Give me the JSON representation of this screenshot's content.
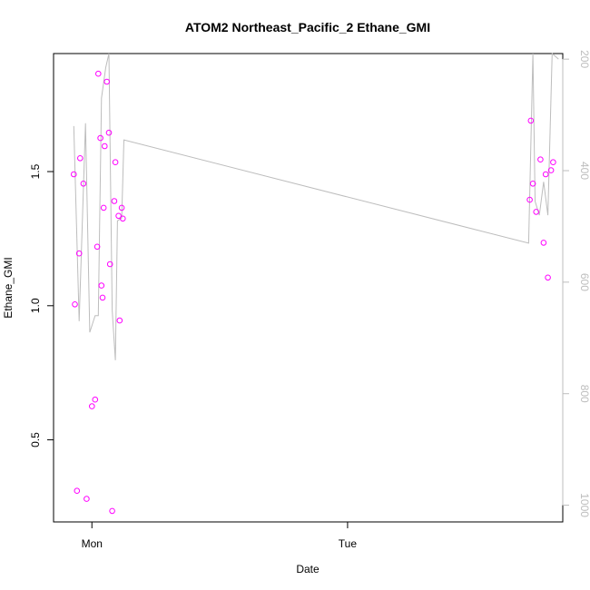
{
  "chart_data": {
    "type": "scatter",
    "title": "ATOM2 Northeast_Pacific_2 Ethane_GMI",
    "xlabel": "Date",
    "ylabel": "Ethane_GMI",
    "x_unit": "hours since Sunday 00:00",
    "xlim": [
      20.4,
      68.2
    ],
    "ylim": [
      0.194,
      1.94
    ],
    "x_ticks": [
      {
        "value": 24,
        "label": "Mon"
      },
      {
        "value": 48,
        "label": "Tue"
      }
    ],
    "y_ticks": [
      {
        "value": 0.5,
        "label": "0.5"
      },
      {
        "value": 1.0,
        "label": "1.0"
      },
      {
        "value": 1.5,
        "label": "1.5"
      }
    ],
    "y2_label": "",
    "y2lim": [
      1030,
      190
    ],
    "y2_ticks": [
      {
        "value": 200,
        "label": "200"
      },
      {
        "value": 400,
        "label": "400"
      },
      {
        "value": 600,
        "label": "600"
      },
      {
        "value": 800,
        "label": "800"
      },
      {
        "value": 1000,
        "label": "1000"
      }
    ],
    "grid": false,
    "series": [
      {
        "kind": "points",
        "color": "#ff00ff",
        "points": [
          [
            22.3,
            1.49
          ],
          [
            22.4,
            1.005
          ],
          [
            22.6,
            0.31
          ],
          [
            22.8,
            1.195
          ],
          [
            22.9,
            1.55
          ],
          [
            23.2,
            1.455
          ],
          [
            23.5,
            0.28
          ],
          [
            24.0,
            0.625
          ],
          [
            24.3,
            0.65
          ],
          [
            24.5,
            1.22
          ],
          [
            24.6,
            1.865
          ],
          [
            24.8,
            1.625
          ],
          [
            24.9,
            1.075
          ],
          [
            25.0,
            1.03
          ],
          [
            25.1,
            1.365
          ],
          [
            25.2,
            1.595
          ],
          [
            25.4,
            1.835
          ],
          [
            25.6,
            1.645
          ],
          [
            25.7,
            1.155
          ],
          [
            25.9,
            0.235
          ],
          [
            26.1,
            1.39
          ],
          [
            26.2,
            1.535
          ],
          [
            26.5,
            1.335
          ],
          [
            26.6,
            0.945
          ],
          [
            26.8,
            1.365
          ],
          [
            26.9,
            1.325
          ],
          [
            65.1,
            1.395
          ],
          [
            65.2,
            1.69
          ],
          [
            65.4,
            1.455
          ],
          [
            65.7,
            1.35
          ],
          [
            66.1,
            1.545
          ],
          [
            66.4,
            1.235
          ],
          [
            66.6,
            1.49
          ],
          [
            66.8,
            1.105
          ],
          [
            67.1,
            1.505
          ],
          [
            67.3,
            1.535
          ]
        ]
      },
      {
        "kind": "line",
        "color": "#bdbdbd",
        "axis": "right",
        "points": [
          [
            22.3,
            320
          ],
          [
            22.8,
            670
          ],
          [
            23.4,
            315
          ],
          [
            23.8,
            690
          ],
          [
            24.3,
            660
          ],
          [
            24.6,
            660
          ],
          [
            24.9,
            270
          ],
          [
            25.3,
            215
          ],
          [
            25.6,
            190
          ],
          [
            25.9,
            650
          ],
          [
            26.2,
            740
          ],
          [
            26.4,
            490
          ],
          [
            26.8,
            485
          ],
          [
            27.0,
            345
          ],
          [
            65.0,
            530
          ],
          [
            65.4,
            190
          ],
          [
            65.6,
            455
          ],
          [
            66.0,
            480
          ],
          [
            66.4,
            420
          ],
          [
            66.8,
            480
          ],
          [
            67.2,
            190
          ],
          [
            67.8,
            200
          ]
        ]
      }
    ]
  }
}
